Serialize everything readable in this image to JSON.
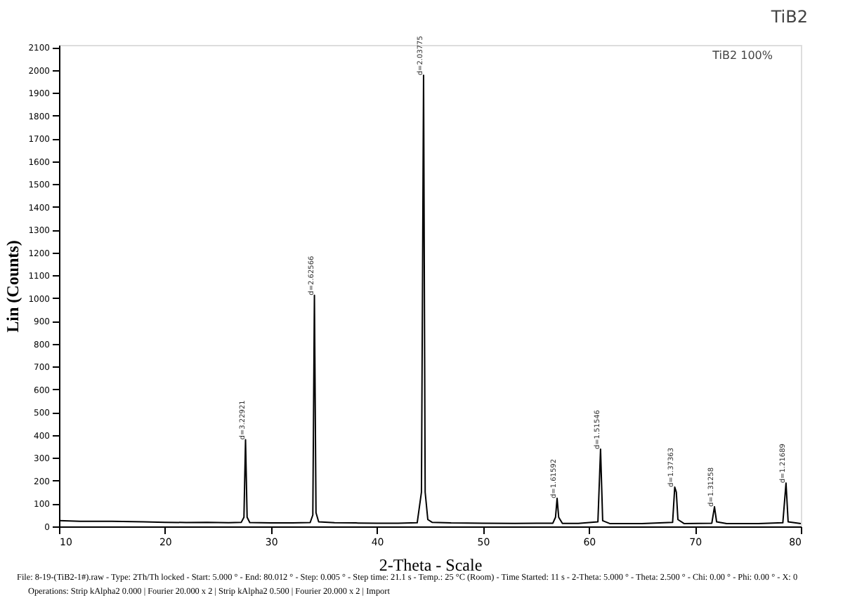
{
  "chart_data": {
    "type": "line",
    "title": "TiB2",
    "xlabel": "2-Theta - Scale",
    "ylabel": "Lin (Counts)",
    "xlim": [
      10,
      80
    ],
    "xticks": [
      10,
      20,
      30,
      40,
      50,
      60,
      70,
      80
    ],
    "ylim": [
      0,
      2110
    ],
    "yticks": [
      0,
      100,
      200,
      300,
      400,
      500,
      600,
      700,
      800,
      900,
      1000,
      1100,
      1200,
      1300,
      1400,
      1500,
      1600,
      1700,
      1800,
      1900,
      2000,
      2100
    ],
    "grid": false,
    "marker": "none",
    "line_style": "solid",
    "series": [
      {
        "color": "#000000",
        "x": [
          10,
          12,
          15,
          18,
          20,
          22,
          24,
          26,
          27.2,
          27.45,
          27.6,
          27.75,
          28.0,
          30,
          32,
          33.7,
          33.95,
          34.1,
          34.25,
          34.5,
          36,
          38,
          40,
          42,
          43.8,
          44.2,
          44.4,
          44.55,
          44.8,
          45.2,
          47,
          50,
          53,
          56.6,
          56.85,
          57.0,
          57.15,
          57.5,
          59,
          60.85,
          61.1,
          61.3,
          62,
          65,
          67.9,
          68.1,
          68.25,
          68.4,
          69,
          71.6,
          71.85,
          72.05,
          73,
          76,
          78.3,
          78.6,
          78.8,
          80
        ],
        "values": [
          25,
          22,
          22,
          20,
          18,
          17,
          18,
          16,
          18,
          40,
          380,
          40,
          17,
          15,
          15,
          17,
          50,
          1013,
          60,
          20,
          16,
          15,
          14,
          14,
          16,
          150,
          1977,
          150,
          30,
          18,
          15,
          14,
          13,
          14,
          40,
          123,
          40,
          13,
          13,
          20,
          338,
          25,
          12,
          12,
          18,
          172,
          150,
          30,
          12,
          14,
          86,
          20,
          12,
          12,
          16,
          190,
          20,
          12
        ]
      }
    ],
    "annotations": [
      {
        "text": "d=3.22921",
        "x": 27.6,
        "y": 380
      },
      {
        "text": "d=2.62566",
        "x": 34.1,
        "y": 1013
      },
      {
        "text": "d=2.03775",
        "x": 44.4,
        "y": 1977
      },
      {
        "text": "d=1.61592",
        "x": 57.0,
        "y": 123
      },
      {
        "text": "d=1.51546",
        "x": 61.1,
        "y": 338
      },
      {
        "text": "d=1.37363",
        "x": 68.1,
        "y": 172
      },
      {
        "text": "d=1.31258",
        "x": 71.85,
        "y": 86
      },
      {
        "text": "d=1.21689",
        "x": 78.6,
        "y": 190
      },
      "TiB2  100%",
      "File: 8-19-(TiB2-1#).raw - Type: 2Th/Th locked - Start: 5.000 ° - End: 80.012 ° - Step: 0.005 ° - Step time: 21.1 s - Temp.: 25 °C (Room) - Time Started: 11 s - 2-Theta: 5.000 ° - Theta: 2.500 ° - Chi: 0.00 ° - Phi: 0.00 ° - X: 0",
      "Operations: Strip kAlpha2 0.000 | Fourier 20.000 x 2 | Strip kAlpha2 0.500 | Fourier 20.000 x 2 | Import"
    ]
  }
}
